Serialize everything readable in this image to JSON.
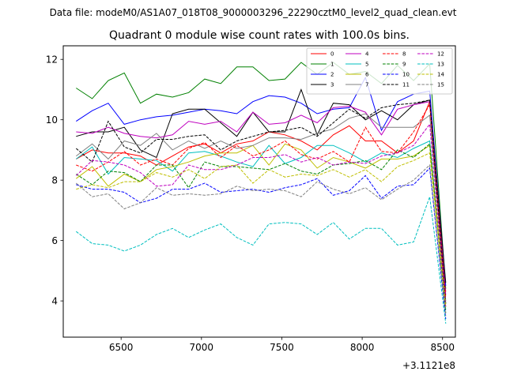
{
  "chart_data": {
    "type": "line",
    "suptitle": "Data file: modeM0/AS1A07_018T08_9000003296_22290cztM0_level2_quad_clean.evt",
    "title": "Quadrant 0 module wise count rates with 100.0s bins.",
    "xlabel": "",
    "ylabel": "",
    "x_offset_label": "+3.1121e8",
    "xlim": [
      6140,
      8580
    ],
    "ylim": [
      2.8,
      12.45
    ],
    "xticks": [
      6500,
      7000,
      7500,
      8000,
      8500
    ],
    "yticks": [
      4,
      6,
      8,
      10,
      12
    ],
    "x": [
      6220,
      6320,
      6420,
      6520,
      6620,
      6720,
      6820,
      6920,
      7020,
      7120,
      7220,
      7320,
      7420,
      7520,
      7620,
      7720,
      7820,
      7920,
      8020,
      8120,
      8220,
      8320,
      8420,
      8520
    ],
    "legend": {
      "position": "upper right",
      "columns": 4
    },
    "series": [
      {
        "name": "0",
        "color": "#ff0000",
        "style": "solid",
        "values": [
          8.7,
          9.0,
          8.9,
          8.9,
          8.8,
          8.5,
          8.8,
          9.1,
          9.2,
          8.9,
          9.2,
          9.3,
          9.6,
          9.5,
          9.3,
          9.0,
          9.5,
          9.8,
          9.3,
          9.3,
          8.9,
          9.3,
          10.6,
          4.3
        ]
      },
      {
        "name": "1",
        "color": "#008000",
        "style": "solid",
        "values": [
          11.05,
          10.7,
          11.3,
          11.55,
          10.55,
          10.85,
          10.75,
          10.9,
          11.35,
          11.2,
          11.75,
          11.75,
          11.3,
          11.35,
          11.9,
          11.5,
          11.9,
          11.5,
          11.6,
          11.2,
          11.8,
          11.3,
          11.85,
          4.4
        ]
      },
      {
        "name": "2",
        "color": "#0000ff",
        "style": "solid",
        "values": [
          9.95,
          10.3,
          10.55,
          9.85,
          10.0,
          10.1,
          10.15,
          10.25,
          10.35,
          10.3,
          10.2,
          10.6,
          10.8,
          10.75,
          10.55,
          10.2,
          10.35,
          10.4,
          11.4,
          9.65,
          10.6,
          10.85,
          10.95,
          4.5
        ]
      },
      {
        "name": "3",
        "color": "#000000",
        "style": "solid",
        "values": [
          9.45,
          9.6,
          9.6,
          9.75,
          9.0,
          8.75,
          10.2,
          10.35,
          10.35,
          9.9,
          9.45,
          10.25,
          9.6,
          9.6,
          11.0,
          9.5,
          10.55,
          10.5,
          10.0,
          10.3,
          10.0,
          10.5,
          10.65,
          4.6
        ]
      },
      {
        "name": "4",
        "color": "#bf00bf",
        "style": "solid",
        "values": [
          9.6,
          9.55,
          9.75,
          9.55,
          9.45,
          9.4,
          9.5,
          9.95,
          9.85,
          9.95,
          9.6,
          10.25,
          9.85,
          9.9,
          10.15,
          9.9,
          10.4,
          10.45,
          10.25,
          9.5,
          10.35,
          10.5,
          10.6,
          4.2
        ]
      },
      {
        "name": "5",
        "color": "#00bfbf",
        "style": "solid",
        "values": [
          8.7,
          9.1,
          8.2,
          8.75,
          8.7,
          8.65,
          8.3,
          8.9,
          8.95,
          8.8,
          8.6,
          8.45,
          9.15,
          8.55,
          8.75,
          9.15,
          9.15,
          8.9,
          8.6,
          8.9,
          8.75,
          9.05,
          9.3,
          3.7
        ]
      },
      {
        "name": "6",
        "color": "#bfbf00",
        "style": "solid",
        "values": [
          8.05,
          8.45,
          7.8,
          8.2,
          7.95,
          8.35,
          8.45,
          8.6,
          8.8,
          8.9,
          8.9,
          9.15,
          8.5,
          9.2,
          9.0,
          8.4,
          8.75,
          8.6,
          8.4,
          8.7,
          8.7,
          8.8,
          9.15,
          3.9
        ]
      },
      {
        "name": "7",
        "color": "#808080",
        "style": "solid",
        "values": [
          8.8,
          9.2,
          8.7,
          9.3,
          9.15,
          9.55,
          9.0,
          9.3,
          9.05,
          9.3,
          9.05,
          9.15,
          9.4,
          9.4,
          9.35,
          9.55,
          9.7,
          10.05,
          10.2,
          9.75,
          9.75,
          9.75,
          10.15,
          4.0
        ]
      },
      {
        "name": "8",
        "color": "#ff0000",
        "style": "dashed",
        "values": [
          8.5,
          8.3,
          8.6,
          8.95,
          8.5,
          8.7,
          8.5,
          9.05,
          9.25,
          8.75,
          9.15,
          8.8,
          9.0,
          9.3,
          8.85,
          8.7,
          8.95,
          8.6,
          9.75,
          8.95,
          8.9,
          9.6,
          10.5,
          4.1
        ]
      },
      {
        "name": "9",
        "color": "#008000",
        "style": "dashed",
        "values": [
          8.2,
          7.85,
          8.3,
          8.25,
          7.95,
          8.5,
          8.5,
          7.75,
          8.6,
          8.45,
          8.45,
          8.4,
          8.35,
          8.55,
          8.3,
          8.2,
          8.5,
          8.55,
          8.65,
          8.35,
          9.0,
          8.75,
          9.2,
          3.6
        ]
      },
      {
        "name": "10",
        "color": "#0000ff",
        "style": "dashed",
        "values": [
          7.85,
          7.7,
          7.7,
          7.6,
          7.25,
          7.4,
          7.7,
          7.7,
          7.9,
          7.6,
          7.65,
          7.7,
          7.6,
          7.75,
          7.85,
          8.05,
          7.5,
          7.65,
          8.15,
          7.4,
          7.8,
          7.85,
          8.4,
          3.4
        ]
      },
      {
        "name": "11",
        "color": "#000000",
        "style": "dashed",
        "values": [
          9.05,
          8.6,
          9.95,
          9.1,
          8.9,
          9.35,
          9.35,
          9.45,
          9.5,
          9.0,
          9.3,
          9.45,
          9.6,
          9.65,
          9.75,
          9.45,
          9.9,
          10.35,
          10.05,
          10.4,
          10.5,
          10.55,
          10.65,
          3.9
        ]
      },
      {
        "name": "12",
        "color": "#bf00bf",
        "style": "dashed",
        "values": [
          8.15,
          8.65,
          8.6,
          8.5,
          8.25,
          7.8,
          7.85,
          8.5,
          8.35,
          8.35,
          8.5,
          8.75,
          8.75,
          8.85,
          8.6,
          8.75,
          8.5,
          8.6,
          8.55,
          8.8,
          8.9,
          9.15,
          9.85,
          3.8
        ]
      },
      {
        "name": "13",
        "color": "#00bfbf",
        "style": "dashed",
        "values": [
          6.3,
          5.9,
          5.85,
          5.65,
          5.85,
          6.2,
          6.4,
          6.1,
          6.35,
          6.55,
          6.1,
          5.85,
          6.55,
          6.6,
          6.55,
          6.2,
          6.6,
          6.05,
          6.4,
          6.4,
          5.85,
          5.95,
          7.45,
          3.25
        ]
      },
      {
        "name": "14",
        "color": "#bfbf00",
        "style": "dashed",
        "values": [
          7.7,
          7.85,
          7.75,
          7.95,
          7.95,
          8.25,
          8.1,
          8.35,
          8.05,
          8.45,
          8.5,
          7.9,
          8.35,
          8.1,
          8.2,
          8.15,
          8.35,
          8.1,
          8.35,
          7.95,
          8.45,
          8.65,
          8.9,
          3.8
        ]
      },
      {
        "name": "15",
        "color": "#808080",
        "style": "dashed",
        "values": [
          7.9,
          7.45,
          7.55,
          7.05,
          7.25,
          7.75,
          7.5,
          7.55,
          7.5,
          7.55,
          7.8,
          7.65,
          7.7,
          7.65,
          7.45,
          7.95,
          7.7,
          7.55,
          7.75,
          7.35,
          7.7,
          8.0,
          8.5,
          3.5
        ]
      }
    ]
  }
}
